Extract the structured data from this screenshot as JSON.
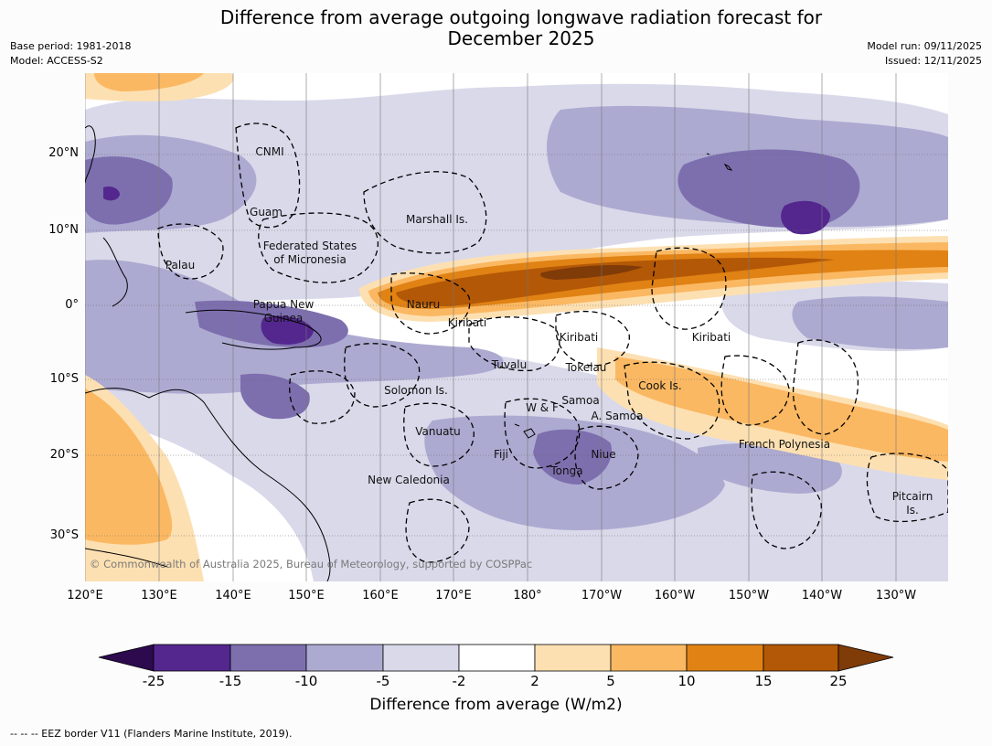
{
  "title": "Difference from average outgoing longwave radiation forecast for December 2025",
  "meta": {
    "base_period": "Base period: 1981-2018",
    "model": "Model: ACCESS-S2",
    "model_run": "Model run: 09/11/2025",
    "issued": "Issued: 12/11/2025"
  },
  "axes": {
    "lat_labels": [
      "20°N",
      "10°N",
      "0°",
      "10°S",
      "20°S",
      "30°S"
    ],
    "lon_labels": [
      "120°E",
      "130°E",
      "140°E",
      "150°E",
      "160°E",
      "170°E",
      "180°",
      "170°W",
      "160°W",
      "150°W",
      "140°W",
      "130°W"
    ]
  },
  "places": [
    {
      "name": "CNMI"
    },
    {
      "name": "Guam"
    },
    {
      "name": "Marshall Is."
    },
    {
      "name": "Federated States"
    },
    {
      "name": "of Micronesia"
    },
    {
      "name": "Palau"
    },
    {
      "name": "Papua New"
    },
    {
      "name": "Guinea"
    },
    {
      "name": "Nauru"
    },
    {
      "name": "Kiribati"
    },
    {
      "name": "Kiribati"
    },
    {
      "name": "Kiribati"
    },
    {
      "name": "Tuvalu"
    },
    {
      "name": "Tokelau"
    },
    {
      "name": "Cook Is."
    },
    {
      "name": "Solomon Is."
    },
    {
      "name": "W & F"
    },
    {
      "name": "Samoa"
    },
    {
      "name": "A. Samoa"
    },
    {
      "name": "Vanuatu"
    },
    {
      "name": "Fiji"
    },
    {
      "name": "Niue"
    },
    {
      "name": "Tonga"
    },
    {
      "name": "New Caledonia"
    },
    {
      "name": "French Polynesia"
    },
    {
      "name": "Pitcairn"
    },
    {
      "name": "Is."
    }
  ],
  "copyright": "© Commonwealth of Australia 2025, Bureau of Meteorology, supported by COSPPac",
  "colorbar": {
    "ticks": [
      "-25",
      "-15",
      "-10",
      "-5",
      "-2",
      "2",
      "5",
      "10",
      "15",
      "25"
    ],
    "colors": [
      "#2d0a4e",
      "#54278f",
      "#7d6fae",
      "#adaad1",
      "#d9d9ea",
      "#ffffff",
      "#fde0b2",
      "#fbb862",
      "#e08214",
      "#b35806",
      "#7f3b08"
    ],
    "title": "Difference from average (W/m2)"
  },
  "footnote": "--  --  -- EEZ border V11 (Flanders Marine Institute, 2019).",
  "chart_data": {
    "type": "heatmap",
    "title": "Difference from average outgoing longwave radiation forecast for December 2025",
    "variable": "OLR anomaly",
    "units": "W/m2",
    "levels": [
      -25,
      -15,
      -10,
      -5,
      -2,
      2,
      5,
      10,
      15,
      25
    ],
    "x_range": [
      "120°E",
      "125°W"
    ],
    "y_range": [
      "35°S",
      "30°N"
    ]
  }
}
